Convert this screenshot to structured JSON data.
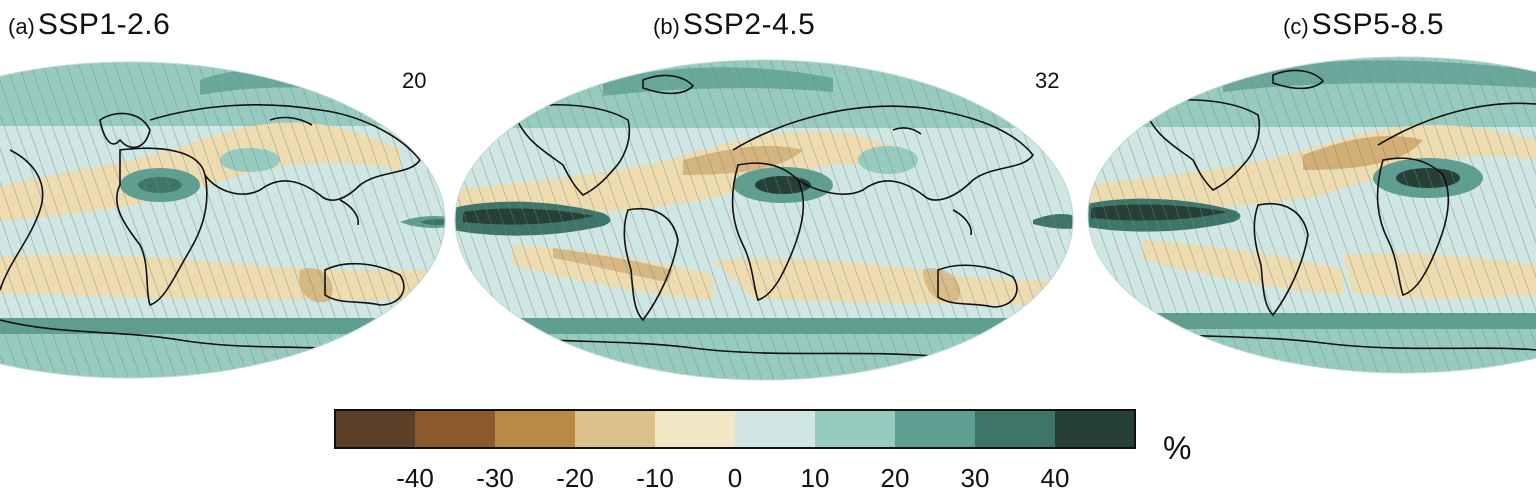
{
  "panels": [
    {
      "letter": "(a)",
      "scenario": "SSP1-2.6",
      "count": "20"
    },
    {
      "letter": "(b)",
      "scenario": "SSP2-4.5",
      "count": "32"
    },
    {
      "letter": "(c)",
      "scenario": "SSP5-8.5",
      "count": ""
    }
  ],
  "legend": {
    "unit": "%",
    "ticks": [
      "-40",
      "-30",
      "-20",
      "-10",
      "0",
      "10",
      "20",
      "30",
      "40"
    ],
    "colors": [
      "#5b4027",
      "#8a5a2c",
      "#b98a45",
      "#dcc28a",
      "#f3e6c4",
      "#cfe6e2",
      "#98cbc0",
      "#5f9f92",
      "#3d7569",
      "#263f37"
    ]
  },
  "colors": {
    "ocean_base": "#cfe6e2",
    "dry": "#eedcb0",
    "dry_strong": "#c79a5c",
    "wet": "#98cbc0",
    "wet_strong": "#5f9f92",
    "wet_extreme": "#263f37",
    "coast": "#111111"
  }
}
